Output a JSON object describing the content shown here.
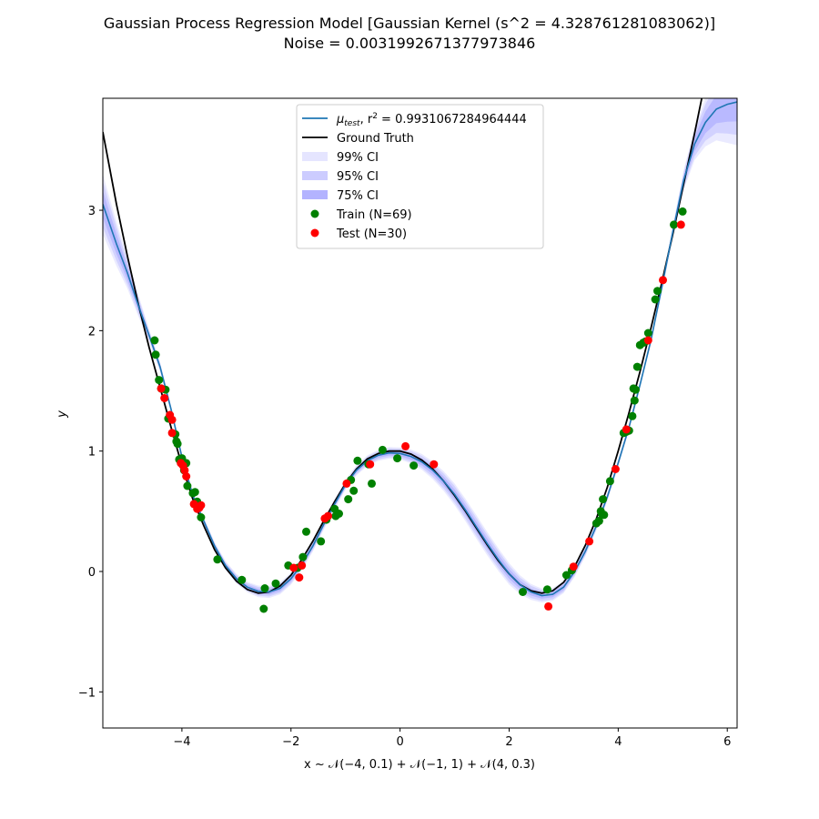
{
  "chart_data": {
    "type": "line",
    "title_line1": "Gaussian Process Regression Model [Gaussian Kernel (s^2 = 4.328761281083062)]",
    "title_line2": "Noise = 0.0031992671377973846",
    "xlabel": "x ~ 𝒩(−4, 0.1) + 𝒩(−1, 1) + 𝒩(4, 0.3)",
    "ylabel": "y",
    "xlim": [
      -5.45,
      6.18
    ],
    "ylim": [
      -1.3,
      3.93
    ],
    "xticks": [
      -4,
      -2,
      0,
      2,
      4,
      6
    ],
    "yticks": [
      -1,
      0,
      1,
      2,
      3
    ],
    "xtick_labels": [
      "−4",
      "−2",
      "0",
      "2",
      "4",
      "6"
    ],
    "ytick_labels": [
      "−1",
      "0",
      "1",
      "2",
      "3"
    ],
    "grid": false,
    "legend_location": "upper center",
    "colors": {
      "mean": "#1f77b4",
      "truth": "#000000",
      "ci99": "#e5e5ff",
      "ci95": "#ccccff",
      "ci75": "#b3b3ff",
      "train": "#008000",
      "test": "#ff0000"
    },
    "legend": [
      {
        "key": "mean",
        "label_prefix": "μ",
        "label_sub": "test",
        "label_rest": ", r",
        "label_sup": "2",
        "label_tail": " = 0.9931067284964444"
      },
      {
        "key": "truth",
        "label": "Ground Truth"
      },
      {
        "key": "ci99",
        "label": "99% CI"
      },
      {
        "key": "ci95",
        "label": "95% CI"
      },
      {
        "key": "ci75",
        "label": "75% CI"
      },
      {
        "key": "train",
        "label": "Train (N=69)"
      },
      {
        "key": "test",
        "label": "Test (N=30)"
      }
    ],
    "mean_curve": [
      [
        -5.45,
        3.05
      ],
      [
        -5.2,
        2.72
      ],
      [
        -5.0,
        2.48
      ],
      [
        -4.8,
        2.21
      ],
      [
        -4.6,
        1.96
      ],
      [
        -4.4,
        1.7
      ],
      [
        -4.2,
        1.35
      ],
      [
        -4.0,
        0.95
      ],
      [
        -3.8,
        0.63
      ],
      [
        -3.6,
        0.42
      ],
      [
        -3.4,
        0.21
      ],
      [
        -3.2,
        0.05
      ],
      [
        -3.0,
        -0.06
      ],
      [
        -2.8,
        -0.13
      ],
      [
        -2.6,
        -0.165
      ],
      [
        -2.4,
        -0.17
      ],
      [
        -2.2,
        -0.14
      ],
      [
        -2.0,
        -0.06
      ],
      [
        -1.8,
        0.06
      ],
      [
        -1.6,
        0.21
      ],
      [
        -1.4,
        0.39
      ],
      [
        -1.2,
        0.56
      ],
      [
        -1.0,
        0.72
      ],
      [
        -0.8,
        0.84
      ],
      [
        -0.6,
        0.92
      ],
      [
        -0.4,
        0.965
      ],
      [
        -0.2,
        0.985
      ],
      [
        0.0,
        0.98
      ],
      [
        0.2,
        0.955
      ],
      [
        0.4,
        0.91
      ],
      [
        0.6,
        0.84
      ],
      [
        0.8,
        0.75
      ],
      [
        1.0,
        0.64
      ],
      [
        1.2,
        0.51
      ],
      [
        1.4,
        0.37
      ],
      [
        1.6,
        0.23
      ],
      [
        1.8,
        0.1
      ],
      [
        2.0,
        -0.02
      ],
      [
        2.2,
        -0.11
      ],
      [
        2.4,
        -0.17
      ],
      [
        2.6,
        -0.2
      ],
      [
        2.8,
        -0.19
      ],
      [
        3.0,
        -0.13
      ],
      [
        3.2,
        0.0
      ],
      [
        3.4,
        0.17
      ],
      [
        3.6,
        0.38
      ],
      [
        3.8,
        0.62
      ],
      [
        4.0,
        0.9
      ],
      [
        4.2,
        1.2
      ],
      [
        4.4,
        1.55
      ],
      [
        4.6,
        1.92
      ],
      [
        4.8,
        2.36
      ],
      [
        5.0,
        2.82
      ],
      [
        5.2,
        3.25
      ],
      [
        5.4,
        3.55
      ],
      [
        5.6,
        3.73
      ],
      [
        5.8,
        3.84
      ],
      [
        6.0,
        3.88
      ],
      [
        6.18,
        3.9
      ]
    ],
    "truth_curve": [
      [
        -5.45,
        3.65
      ],
      [
        -5.2,
        3.05
      ],
      [
        -5.0,
        2.62
      ],
      [
        -4.8,
        2.22
      ],
      [
        -4.6,
        1.86
      ],
      [
        -4.4,
        1.53
      ],
      [
        -4.2,
        1.2
      ],
      [
        -4.0,
        0.88
      ],
      [
        -3.8,
        0.6
      ],
      [
        -3.6,
        0.38
      ],
      [
        -3.4,
        0.18
      ],
      [
        -3.2,
        0.03
      ],
      [
        -3.0,
        -0.08
      ],
      [
        -2.8,
        -0.15
      ],
      [
        -2.6,
        -0.18
      ],
      [
        -2.4,
        -0.17
      ],
      [
        -2.2,
        -0.12
      ],
      [
        -2.0,
        -0.03
      ],
      [
        -1.8,
        0.1
      ],
      [
        -1.6,
        0.25
      ],
      [
        -1.4,
        0.42
      ],
      [
        -1.2,
        0.58
      ],
      [
        -1.0,
        0.73
      ],
      [
        -0.8,
        0.85
      ],
      [
        -0.6,
        0.935
      ],
      [
        -0.4,
        0.98
      ],
      [
        -0.2,
        1.0
      ],
      [
        0.0,
        1.0
      ],
      [
        0.2,
        0.975
      ],
      [
        0.4,
        0.925
      ],
      [
        0.6,
        0.85
      ],
      [
        0.8,
        0.75
      ],
      [
        1.0,
        0.63
      ],
      [
        1.2,
        0.5
      ],
      [
        1.4,
        0.36
      ],
      [
        1.6,
        0.22
      ],
      [
        1.8,
        0.09
      ],
      [
        2.0,
        -0.02
      ],
      [
        2.2,
        -0.11
      ],
      [
        2.4,
        -0.16
      ],
      [
        2.6,
        -0.18
      ],
      [
        2.8,
        -0.16
      ],
      [
        3.0,
        -0.09
      ],
      [
        3.2,
        0.04
      ],
      [
        3.4,
        0.22
      ],
      [
        3.6,
        0.44
      ],
      [
        3.8,
        0.7
      ],
      [
        4.0,
        1.0
      ],
      [
        4.2,
        1.32
      ],
      [
        4.4,
        1.66
      ],
      [
        4.6,
        2.02
      ],
      [
        4.8,
        2.4
      ],
      [
        5.0,
        2.8
      ],
      [
        5.2,
        3.22
      ],
      [
        5.4,
        3.64
      ],
      [
        5.6,
        4.08
      ]
    ],
    "ci_halfwidth_99": [
      [
        -5.45,
        0.25
      ],
      [
        -5.0,
        0.13
      ],
      [
        -4.6,
        0.05
      ],
      [
        -4.2,
        0.03
      ],
      [
        -3.6,
        0.03
      ],
      [
        -3.0,
        0.04
      ],
      [
        -2.5,
        0.05
      ],
      [
        -2.0,
        0.05
      ],
      [
        -1.0,
        0.04
      ],
      [
        0.0,
        0.05
      ],
      [
        0.5,
        0.07
      ],
      [
        1.0,
        0.09
      ],
      [
        1.5,
        0.1
      ],
      [
        2.0,
        0.09
      ],
      [
        2.5,
        0.06
      ],
      [
        3.0,
        0.05
      ],
      [
        3.5,
        0.04
      ],
      [
        4.0,
        0.03
      ],
      [
        4.5,
        0.03
      ],
      [
        5.0,
        0.05
      ],
      [
        5.3,
        0.1
      ],
      [
        5.6,
        0.2
      ],
      [
        6.0,
        0.32
      ],
      [
        6.18,
        0.36
      ]
    ],
    "train_points": [
      [
        -4.5,
        1.92
      ],
      [
        -4.48,
        1.8
      ],
      [
        -4.42,
        1.59
      ],
      [
        -4.38,
        1.52
      ],
      [
        -4.3,
        1.51
      ],
      [
        -4.25,
        1.27
      ],
      [
        -4.12,
        1.14
      ],
      [
        -4.1,
        1.08
      ],
      [
        -4.08,
        1.06
      ],
      [
        -4.0,
        0.94
      ],
      [
        -3.96,
        0.84
      ],
      [
        -3.92,
        0.9
      ],
      [
        -3.9,
        0.71
      ],
      [
        -3.8,
        0.65
      ],
      [
        -3.76,
        0.66
      ],
      [
        -3.72,
        0.58
      ],
      [
        -3.65,
        0.45
      ],
      [
        -3.35,
        0.1
      ],
      [
        -2.9,
        -0.07
      ],
      [
        -2.5,
        -0.31
      ],
      [
        -2.48,
        -0.14
      ],
      [
        -2.28,
        -0.1
      ],
      [
        -2.05,
        0.05
      ],
      [
        -1.88,
        0.03
      ],
      [
        -1.78,
        0.12
      ],
      [
        -1.72,
        0.33
      ],
      [
        -1.45,
        0.25
      ],
      [
        -1.2,
        0.52
      ],
      [
        -1.18,
        0.46
      ],
      [
        -1.12,
        0.48
      ],
      [
        -0.95,
        0.6
      ],
      [
        -0.9,
        0.76
      ],
      [
        -0.85,
        0.67
      ],
      [
        -0.78,
        0.92
      ],
      [
        -0.52,
        0.73
      ],
      [
        -0.32,
        1.01
      ],
      [
        -0.05,
        0.94
      ],
      [
        0.25,
        0.88
      ],
      [
        2.25,
        -0.17
      ],
      [
        2.7,
        -0.15
      ],
      [
        3.05,
        -0.03
      ],
      [
        3.15,
        0.01
      ],
      [
        3.6,
        0.4
      ],
      [
        3.65,
        0.42
      ],
      [
        3.68,
        0.5
      ],
      [
        3.72,
        0.6
      ],
      [
        3.74,
        0.47
      ],
      [
        3.85,
        0.75
      ],
      [
        4.1,
        1.15
      ],
      [
        4.2,
        1.17
      ],
      [
        4.26,
        1.29
      ],
      [
        4.28,
        1.52
      ],
      [
        4.3,
        1.42
      ],
      [
        4.32,
        1.51
      ],
      [
        4.35,
        1.7
      ],
      [
        4.4,
        1.88
      ],
      [
        4.46,
        1.9
      ],
      [
        4.55,
        1.98
      ],
      [
        4.68,
        2.26
      ],
      [
        4.72,
        2.33
      ],
      [
        5.02,
        2.88
      ],
      [
        5.18,
        2.99
      ],
      [
        4.15,
        1.16
      ],
      [
        3.7,
        0.48
      ],
      [
        -4.05,
        0.93
      ],
      [
        -1.35,
        0.43
      ],
      [
        -0.58,
        0.89
      ],
      [
        -3.7,
        0.55
      ],
      [
        4.5,
        1.91
      ]
    ],
    "test_points": [
      [
        -4.38,
        1.52
      ],
      [
        -4.32,
        1.44
      ],
      [
        -4.22,
        1.3
      ],
      [
        -4.18,
        1.26
      ],
      [
        -4.18,
        1.15
      ],
      [
        -4.02,
        0.9
      ],
      [
        -3.98,
        0.88
      ],
      [
        -3.95,
        0.84
      ],
      [
        -3.92,
        0.79
      ],
      [
        -3.78,
        0.56
      ],
      [
        -3.72,
        0.52
      ],
      [
        -3.68,
        0.53
      ],
      [
        -3.65,
        0.55
      ],
      [
        -1.95,
        0.03
      ],
      [
        -1.85,
        -0.05
      ],
      [
        -1.8,
        0.05
      ],
      [
        -1.38,
        0.44
      ],
      [
        -1.32,
        0.46
      ],
      [
        -0.98,
        0.73
      ],
      [
        -0.55,
        0.89
      ],
      [
        0.1,
        1.04
      ],
      [
        0.62,
        0.89
      ],
      [
        2.72,
        -0.29
      ],
      [
        3.18,
        0.04
      ],
      [
        3.47,
        0.25
      ],
      [
        3.95,
        0.85
      ],
      [
        4.15,
        1.18
      ],
      [
        4.55,
        1.92
      ],
      [
        4.82,
        2.42
      ],
      [
        5.15,
        2.88
      ]
    ]
  }
}
